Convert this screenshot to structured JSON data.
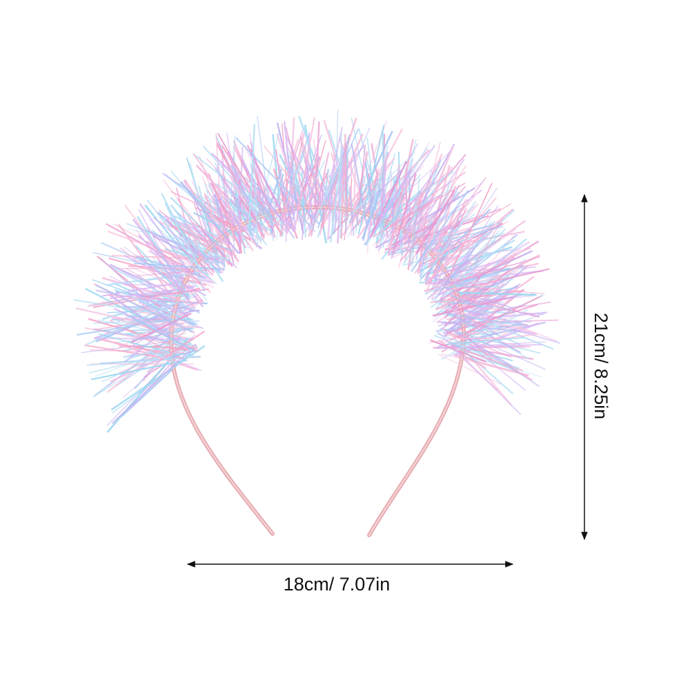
{
  "dimensions": {
    "width": "18cm/ 7.07in",
    "height": "21cm/ 8.25in"
  }
}
